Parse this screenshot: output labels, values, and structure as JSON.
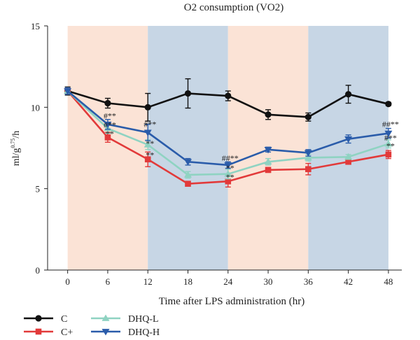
{
  "chart_data": {
    "type": "line",
    "title": "O2 consumption (VO2)",
    "xlabel": "Time after LPS administration (hr)",
    "ylabel": "ml/g",
    "ylabel_sup": "0.75",
    "ylabel_tail": "/h",
    "x": [
      0,
      6,
      12,
      18,
      24,
      30,
      36,
      42,
      48
    ],
    "x_ticks": [
      "0",
      "6",
      "12",
      "18",
      "24",
      "30",
      "36",
      "42",
      "48"
    ],
    "y_ticks": [
      "0",
      "5",
      "10",
      "15"
    ],
    "xlim": [
      -3,
      50
    ],
    "ylim": [
      0,
      15
    ],
    "shaded_bands": [
      {
        "from": 0,
        "to": 12,
        "color": "#fbe3d6"
      },
      {
        "from": 12,
        "to": 24,
        "color": "#c7d6e5"
      },
      {
        "from": 24,
        "to": 36,
        "color": "#fbe3d6"
      },
      {
        "from": 36,
        "to": 48,
        "color": "#c7d6e5"
      }
    ],
    "series": [
      {
        "name": "C",
        "color": "#111111",
        "marker": "circle",
        "values": [
          11.0,
          10.25,
          10.0,
          10.85,
          10.7,
          9.55,
          9.4,
          10.8,
          10.2
        ],
        "errors": [
          0.25,
          0.3,
          0.85,
          0.9,
          0.3,
          0.3,
          0.25,
          0.55,
          0.1
        ]
      },
      {
        "name": "C+",
        "color": "#e23a3a",
        "marker": "square",
        "values": [
          11.0,
          8.15,
          6.8,
          5.3,
          5.45,
          6.15,
          6.2,
          6.65,
          7.1
        ],
        "errors": [
          0.2,
          0.3,
          0.45,
          0.15,
          0.35,
          0.15,
          0.35,
          0.15,
          0.25
        ]
      },
      {
        "name": "DHQ-L",
        "color": "#8fd3c2",
        "marker": "triangle-up",
        "values": [
          11.0,
          8.7,
          7.7,
          5.85,
          5.9,
          6.65,
          6.9,
          6.95,
          7.75
        ],
        "errors": [
          0.2,
          0.3,
          0.3,
          0.2,
          0.3,
          0.2,
          0.2,
          0.15,
          0.25
        ]
      },
      {
        "name": "DHQ-H",
        "color": "#2a5caa",
        "marker": "triangle-down",
        "values": [
          11.0,
          8.95,
          8.45,
          6.65,
          6.45,
          7.4,
          7.2,
          8.05,
          8.4
        ],
        "errors": [
          0.2,
          0.3,
          0.5,
          0.2,
          0.2,
          0.15,
          0.2,
          0.25,
          0.3
        ]
      }
    ],
    "annotations": [
      {
        "x": 6,
        "y": 9.3,
        "text": "#**"
      },
      {
        "x": 6,
        "y": 8.75,
        "text": "#**"
      },
      {
        "x": 6,
        "y": 8.2,
        "text": "**"
      },
      {
        "x": 12,
        "y": 8.8,
        "text": "#**"
      },
      {
        "x": 12,
        "y": 7.6,
        "text": "**"
      },
      {
        "x": 12,
        "y": 6.9,
        "text": "**"
      },
      {
        "x": 24,
        "y": 6.7,
        "text": "##**"
      },
      {
        "x": 24,
        "y": 6.1,
        "text": "**"
      },
      {
        "x": 24,
        "y": 5.55,
        "text": "**"
      },
      {
        "x": 48,
        "y": 8.8,
        "text": "##**"
      },
      {
        "x": 48,
        "y": 7.95,
        "text": "#**"
      },
      {
        "x": 48,
        "y": 7.45,
        "text": "**"
      }
    ],
    "legend": [
      {
        "name": "C",
        "marker": "circle",
        "color": "#111111"
      },
      {
        "name": "C+",
        "marker": "square",
        "color": "#e23a3a"
      },
      {
        "name": "DHQ-L",
        "marker": "triangle-up",
        "color": "#8fd3c2"
      },
      {
        "name": "DHQ-H",
        "marker": "triangle-down",
        "color": "#2a5caa"
      }
    ]
  }
}
